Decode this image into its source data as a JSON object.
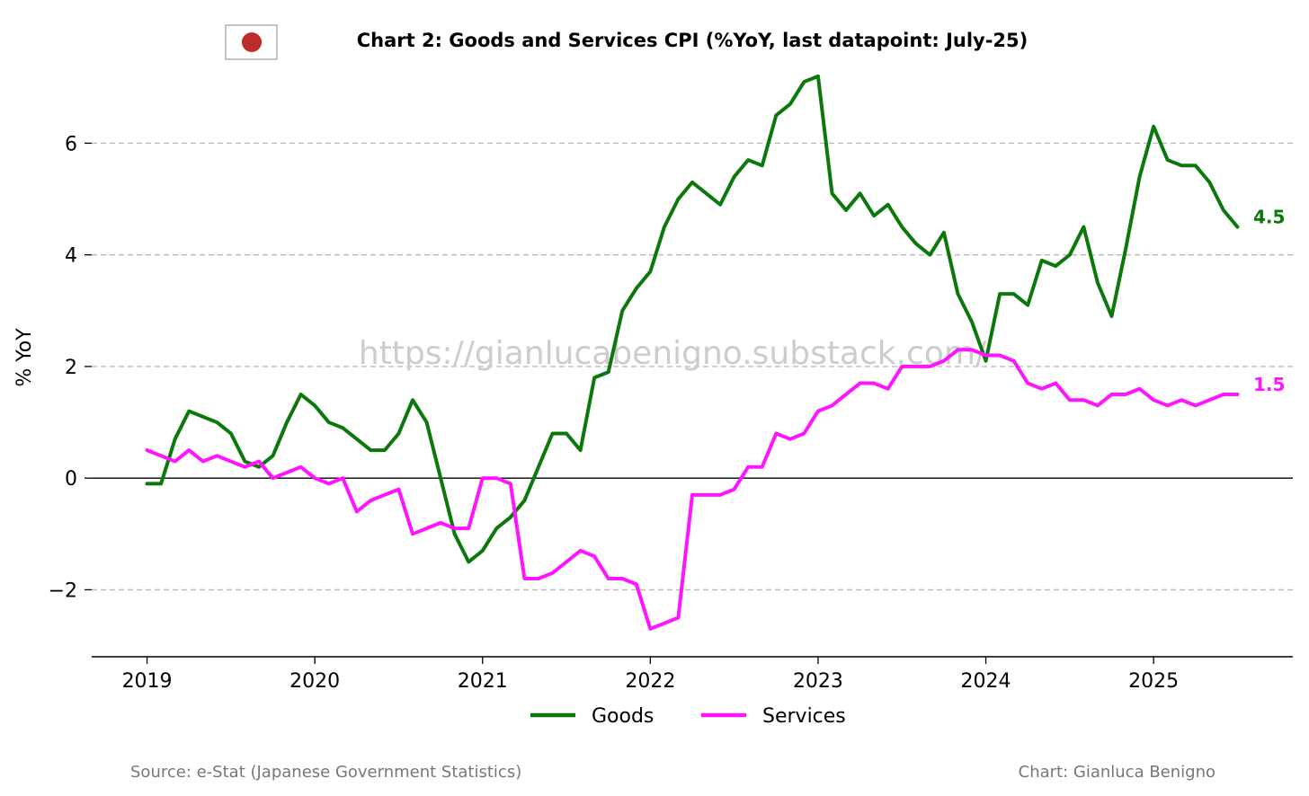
{
  "colors": {
    "goods": "#0a780a",
    "services": "#ff14ff",
    "grid": "#bbbbbb",
    "flag_red": "#bc2c2c"
  },
  "flag": {
    "icon": "japan-flag-icon"
  },
  "watermark": "https://gianlucabenigno.substack.com/",
  "footer": {
    "source": "Source: e-Stat (Japanese Government Statistics)",
    "credit": "Chart: Gianluca Benigno"
  },
  "chart_data": {
    "type": "line",
    "title": "Chart 2: Goods and Services CPI (%YoY, last datapoint: July-25)",
    "xlabel": "",
    "ylabel": "% YoY",
    "x_start": "2019-01",
    "frequency": "monthly",
    "xlim": [
      2018.67,
      2025.83
    ],
    "ylim": [
      -3.2,
      7.6
    ],
    "yticks": [
      -2,
      0,
      2,
      4,
      6
    ],
    "ytick_labels": [
      "−2",
      "0",
      "2",
      "4",
      "6"
    ],
    "xticks": [
      2019,
      2020,
      2021,
      2022,
      2023,
      2024,
      2025
    ],
    "xtick_labels": [
      "2019",
      "2020",
      "2021",
      "2022",
      "2023",
      "2024",
      "2025"
    ],
    "grid": "horizontal dashed",
    "legend_position": "bottom-center",
    "series": [
      {
        "name": "Goods",
        "end_label": "4.5",
        "values": [
          -0.1,
          -0.1,
          0.7,
          1.2,
          1.1,
          1.0,
          0.8,
          0.3,
          0.2,
          0.4,
          1.0,
          1.5,
          1.3,
          1.0,
          0.9,
          0.7,
          0.5,
          0.5,
          0.8,
          1.4,
          1.0,
          0.0,
          -1.0,
          -1.5,
          -1.3,
          -0.9,
          -0.7,
          -0.4,
          0.2,
          0.8,
          0.8,
          0.5,
          1.8,
          1.9,
          3.0,
          3.4,
          3.7,
          4.5,
          5.0,
          5.3,
          5.1,
          4.9,
          5.4,
          5.7,
          5.6,
          6.5,
          6.7,
          7.1,
          7.2,
          5.1,
          4.8,
          5.1,
          4.7,
          4.9,
          4.5,
          4.2,
          4.0,
          4.4,
          3.3,
          2.8,
          2.1,
          3.3,
          3.3,
          3.1,
          3.9,
          3.8,
          4.0,
          4.5,
          3.5,
          2.9,
          4.1,
          5.4,
          6.3,
          5.7,
          5.6,
          5.6,
          5.3,
          4.8,
          4.5
        ]
      },
      {
        "name": "Services",
        "end_label": "1.5",
        "values": [
          0.5,
          0.4,
          0.3,
          0.5,
          0.3,
          0.4,
          0.3,
          0.2,
          0.3,
          0.0,
          0.1,
          0.2,
          0.0,
          -0.1,
          0.0,
          -0.6,
          -0.4,
          -0.3,
          -0.2,
          -1.0,
          -0.9,
          -0.8,
          -0.9,
          -0.9,
          0.0,
          0.0,
          -0.1,
          -1.8,
          -1.8,
          -1.7,
          -1.5,
          -1.3,
          -1.4,
          -1.8,
          -1.8,
          -1.9,
          -2.7,
          -2.6,
          -2.5,
          -0.3,
          -0.3,
          -0.3,
          -0.2,
          0.2,
          0.2,
          0.8,
          0.7,
          0.8,
          1.2,
          1.3,
          1.5,
          1.7,
          1.7,
          1.6,
          2.0,
          2.0,
          2.0,
          2.1,
          2.3,
          2.3,
          2.2,
          2.2,
          2.1,
          1.7,
          1.6,
          1.7,
          1.4,
          1.4,
          1.3,
          1.5,
          1.5,
          1.6,
          1.4,
          1.3,
          1.4,
          1.3,
          1.4,
          1.5,
          1.5
        ]
      }
    ]
  }
}
